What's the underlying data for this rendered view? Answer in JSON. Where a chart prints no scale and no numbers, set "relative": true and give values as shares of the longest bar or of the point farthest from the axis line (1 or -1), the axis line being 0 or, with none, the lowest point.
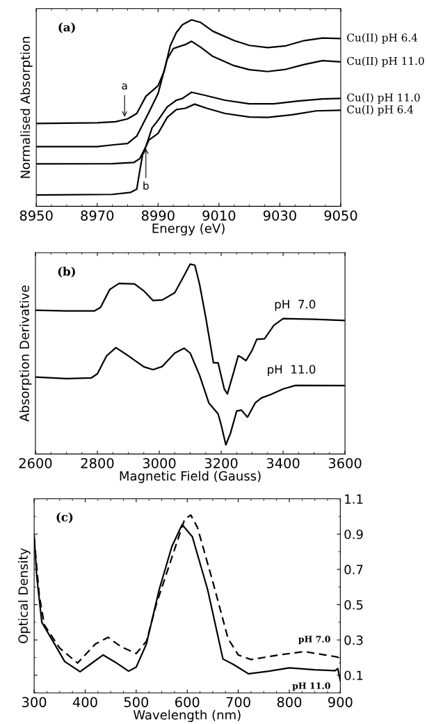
{
  "chart_data": [
    {
      "type": "line",
      "relative": true,
      "xlabel": "Energy (eV)",
      "ylabel": "Normalised Absorption",
      "xlim": [
        8950,
        9050
      ],
      "xticks": [
        8950,
        8970,
        8990,
        9010,
        9030,
        9050
      ],
      "annotations": [
        "(a)",
        {
          "text": "a",
          "x": 8979,
          "y": 0.47
        },
        {
          "text": "b",
          "x": 8986,
          "y": 0.32
        }
      ],
      "series": [
        {
          "name": "Cu(II) pH 6.4",
          "color": "#000000",
          "x": [
            8950,
            8970,
            8976,
            8980,
            8983,
            8986,
            8990,
            8992,
            8994,
            8996,
            8998,
            9001,
            9004,
            9008,
            9015,
            9020,
            9026,
            9032,
            9038,
            9044,
            9050
          ],
          "values": [
            0.444,
            0.448,
            0.454,
            0.469,
            0.498,
            0.59,
            0.647,
            0.725,
            0.861,
            0.932,
            0.974,
            1.0,
            0.986,
            0.939,
            0.889,
            0.863,
            0.851,
            0.861,
            0.889,
            0.903,
            0.9
          ]
        },
        {
          "name": "Cu(II) pH 11.0",
          "color": "#000000",
          "x": [
            8950,
            8970,
            8976,
            8980,
            8983,
            8987,
            8990,
            8993,
            8995,
            8999,
            9001,
            9004,
            9008,
            9015,
            9020,
            9026,
            9032,
            9038,
            9044,
            9050
          ],
          "values": [
            0.32,
            0.32,
            0.331,
            0.337,
            0.377,
            0.505,
            0.605,
            0.789,
            0.846,
            0.868,
            0.885,
            0.853,
            0.804,
            0.754,
            0.733,
            0.723,
            0.735,
            0.761,
            0.781,
            0.775
          ]
        },
        {
          "name": "Cu(I) pH 11.0",
          "color": "#000000",
          "x": [
            8950,
            8975,
            8982,
            8984,
            8986,
            8988,
            8990,
            8993,
            8996,
            8998,
            9001,
            9005,
            9012,
            9020,
            9028,
            9036,
            9044,
            9050
          ],
          "values": [
            0.228,
            0.229,
            0.235,
            0.256,
            0.32,
            0.42,
            0.462,
            0.533,
            0.569,
            0.579,
            0.612,
            0.597,
            0.569,
            0.55,
            0.55,
            0.565,
            0.576,
            0.579
          ]
        },
        {
          "name": "Cu(I) pH 6.4",
          "color": "#000000",
          "x": [
            8950,
            8975,
            8981,
            8983,
            8984,
            8985,
            8987,
            8990,
            8993,
            8996,
            8999,
            9002,
            9006,
            9012,
            9020,
            9026,
            9034,
            9042,
            9050
          ],
          "values": [
            0.061,
            0.064,
            0.075,
            0.092,
            0.192,
            0.284,
            0.356,
            0.391,
            0.477,
            0.519,
            0.526,
            0.548,
            0.526,
            0.498,
            0.479,
            0.477,
            0.491,
            0.512,
            0.515
          ]
        }
      ]
    },
    {
      "type": "line",
      "relative": true,
      "xlabel": "Magnetic Field (Gauss)",
      "ylabel": "Absorption Derivative",
      "xlim": [
        2600,
        3600
      ],
      "xticks": [
        2600,
        2800,
        3000,
        3200,
        3400,
        3600
      ],
      "annotations": [
        "(b)"
      ],
      "series": [
        {
          "name": "pH  7.0",
          "color": "#000000",
          "x": [
            2600,
            2700,
            2790,
            2810,
            2840,
            2870,
            2920,
            2950,
            2980,
            3010,
            3050,
            3080,
            3100,
            3115,
            3130,
            3150,
            3175,
            3190,
            3210,
            3220,
            3240,
            3255,
            3265,
            3280,
            3300,
            3315,
            3340,
            3370,
            3400,
            3500,
            3600
          ],
          "values": [
            0.757,
            0.753,
            0.753,
            0.771,
            0.866,
            0.898,
            0.895,
            0.859,
            0.808,
            0.811,
            0.849,
            0.939,
            1.0,
            0.994,
            0.895,
            0.721,
            0.48,
            0.48,
            0.342,
            0.316,
            0.429,
            0.517,
            0.509,
            0.491,
            0.546,
            0.604,
            0.607,
            0.677,
            0.713,
            0.709,
            0.703
          ]
        },
        {
          "name": "pH  11.0",
          "color": "#000000",
          "x": [
            2600,
            2700,
            2780,
            2800,
            2830,
            2860,
            2900,
            2950,
            2980,
            3010,
            3050,
            3080,
            3100,
            3130,
            3160,
            3190,
            3200,
            3215,
            3230,
            3250,
            3265,
            3285,
            3310,
            3330,
            3360,
            3400,
            3440,
            3600
          ],
          "values": [
            0.405,
            0.397,
            0.4,
            0.422,
            0.517,
            0.56,
            0.517,
            0.459,
            0.444,
            0.461,
            0.531,
            0.557,
            0.531,
            0.415,
            0.269,
            0.211,
            0.153,
            0.048,
            0.109,
            0.226,
            0.231,
            0.194,
            0.269,
            0.295,
            0.313,
            0.342,
            0.361,
            0.36
          ]
        }
      ]
    },
    {
      "type": "line",
      "xlabel": "Wavelength (nm)",
      "ylabel": "Optical Density",
      "xlim": [
        300,
        900
      ],
      "xticks": [
        300,
        400,
        500,
        600,
        700,
        800,
        900
      ],
      "ylim": [
        0,
        1.1
      ],
      "yticks": [
        0.1,
        0.3,
        0.5,
        0.7,
        0.9,
        1.1
      ],
      "annotations": [
        "(c)"
      ],
      "series": [
        {
          "name": "pH 7.0",
          "color": "#000000",
          "line_style": "dashed",
          "x": [
            300,
            310,
            320,
            350,
            385,
            420,
            445,
            470,
            500,
            520,
            540,
            570,
            595,
            607,
            620,
            650,
            680,
            700,
            725,
            780,
            830,
            870,
            895,
            900
          ],
          "values": [
            0.877,
            0.554,
            0.385,
            0.254,
            0.169,
            0.277,
            0.315,
            0.262,
            0.223,
            0.292,
            0.508,
            0.769,
            0.985,
            1.008,
            0.938,
            0.631,
            0.308,
            0.215,
            0.189,
            0.215,
            0.234,
            0.215,
            0.203,
            0.169
          ]
        },
        {
          "name": "pH 11.0",
          "color": "#000000",
          "line_style": "solid",
          "x": [
            300,
            305,
            315,
            340,
            360,
            390,
            410,
            435,
            460,
            485,
            500,
            520,
            545,
            570,
            590,
            610,
            640,
            670,
            690,
            720,
            760,
            800,
            850,
            890,
            895,
            900
          ],
          "values": [
            0.892,
            0.662,
            0.4,
            0.277,
            0.177,
            0.12,
            0.162,
            0.215,
            0.172,
            0.123,
            0.146,
            0.277,
            0.585,
            0.831,
            0.954,
            0.885,
            0.585,
            0.192,
            0.162,
            0.108,
            0.123,
            0.142,
            0.131,
            0.126,
            0.138,
            0.069
          ]
        }
      ]
    }
  ]
}
